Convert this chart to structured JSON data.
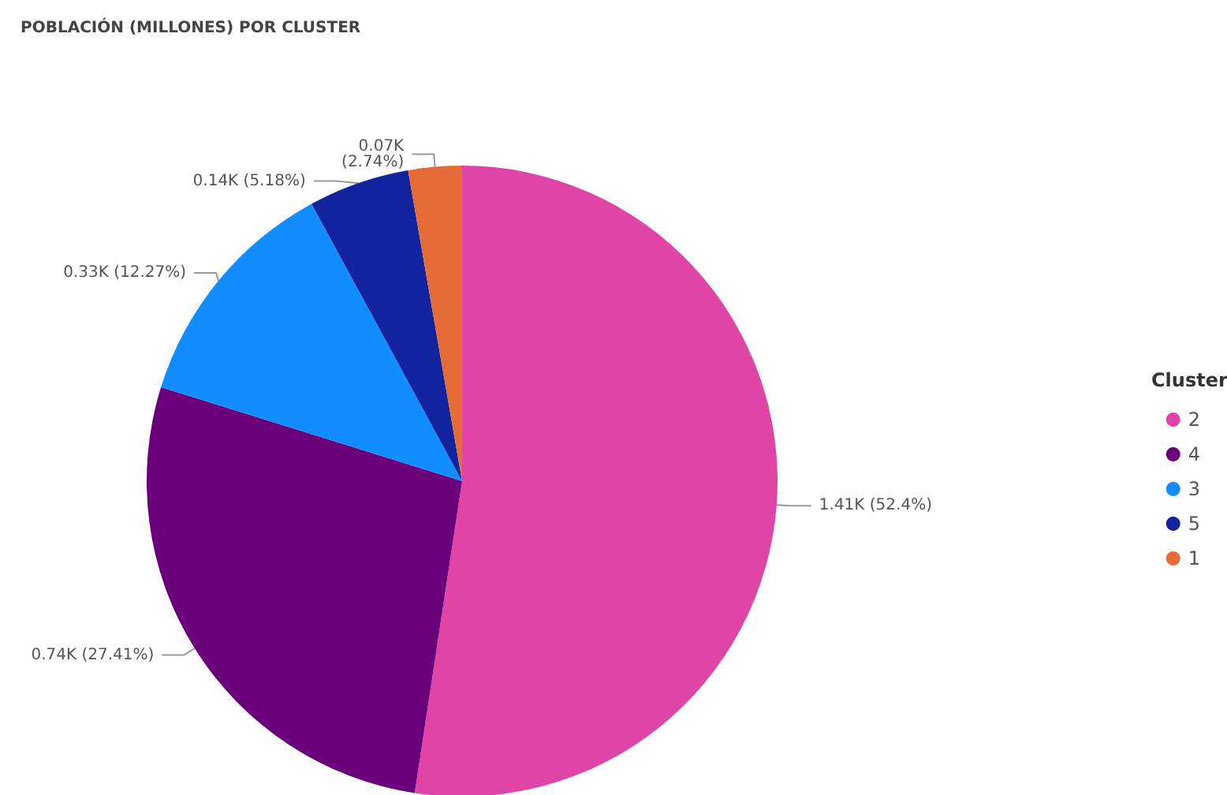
{
  "chart_data": {
    "type": "pie",
    "title": "POBLACIÓN (MILLONES) POR CLUSTER",
    "legend_title": "Cluster",
    "legend": "right",
    "categories": [
      "2",
      "4",
      "3",
      "5",
      "1"
    ],
    "values": [
      52.4,
      27.41,
      12.27,
      5.18,
      2.74
    ],
    "value_labels": [
      "1.41K (52.4%)",
      "0.74K (27.41%)",
      "0.33K (12.27%)",
      "0.14K (5.18%)",
      "0.07K\n(2.74%)"
    ],
    "colors": [
      "#e044a7",
      "#6b007b",
      "#118dff",
      "#12239e",
      "#e66c37"
    ]
  }
}
